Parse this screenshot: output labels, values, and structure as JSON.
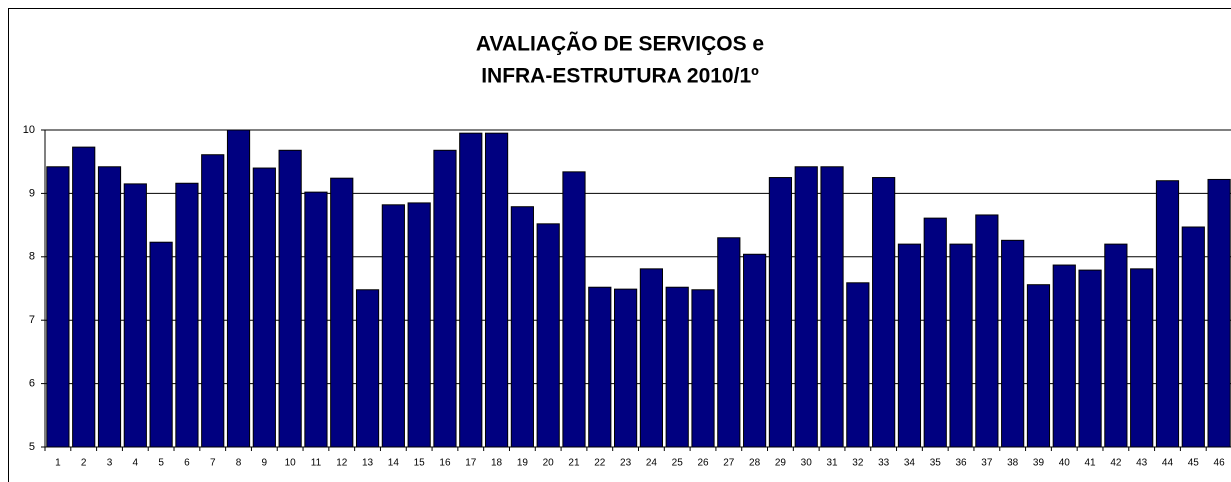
{
  "chart_data": {
    "type": "bar",
    "title": [
      "AVALIAÇÃO DE SERVIÇOS e",
      "INFRA-ESTRUTURA 2010/1º"
    ],
    "categories": [
      "1",
      "2",
      "3",
      "4",
      "5",
      "6",
      "7",
      "8",
      "9",
      "10",
      "11",
      "12",
      "13",
      "14",
      "15",
      "16",
      "17",
      "18",
      "19",
      "20",
      "21",
      "22",
      "23",
      "24",
      "25",
      "26",
      "27",
      "28",
      "29",
      "30",
      "31",
      "32",
      "33",
      "34",
      "35",
      "36",
      "37",
      "38",
      "39",
      "40",
      "41",
      "42",
      "43",
      "44",
      "45",
      "46"
    ],
    "values": [
      9.42,
      9.73,
      9.42,
      9.15,
      8.23,
      9.16,
      9.61,
      10,
      9.4,
      9.68,
      9.02,
      9.24,
      7.48,
      8.82,
      8.85,
      9.68,
      9.95,
      9.95,
      8.79,
      8.52,
      9.34,
      7.52,
      7.49,
      7.81,
      7.52,
      7.48,
      8.3,
      8.04,
      9.25,
      9.42,
      9.42,
      7.59,
      9.25,
      8.2,
      8.61,
      8.2,
      8.66,
      8.26,
      7.56,
      7.87,
      7.79,
      8.2,
      7.81,
      9.2,
      8.47,
      9.22
    ],
    "color": "#000080",
    "ylim": [
      5,
      10
    ],
    "yticks": [
      5,
      6,
      7,
      8,
      9,
      10
    ],
    "grid": true
  }
}
